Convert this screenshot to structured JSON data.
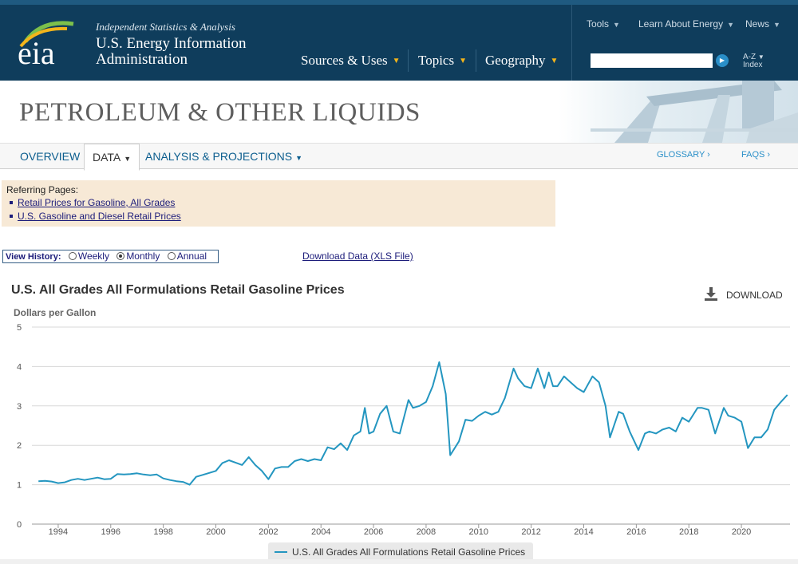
{
  "header": {
    "tagline": "Independent Statistics & Analysis",
    "agency_line1": "U.S. Energy Information",
    "agency_line2": "Administration",
    "logo_text": "eia",
    "nav": [
      {
        "label": "Sources & Uses"
      },
      {
        "label": "Topics"
      },
      {
        "label": "Geography"
      }
    ],
    "top_links": [
      {
        "label": "Tools"
      },
      {
        "label": "Learn About Energy"
      },
      {
        "label": "News"
      }
    ],
    "search_value": "",
    "az_line1": "A-Z",
    "az_line2": "Index"
  },
  "banner": {
    "title": "PETROLEUM & OTHER LIQUIDS"
  },
  "tabs": {
    "overview": "OVERVIEW",
    "data": "DATA",
    "analysis": "ANALYSIS & PROJECTIONS",
    "glossary": "GLOSSARY ›",
    "faqs": "FAQS ›"
  },
  "referring": {
    "heading": "Referring Pages:",
    "links": [
      "Retail Prices for Gasoline, All Grades",
      "U.S. Gasoline and Diesel Retail Prices"
    ]
  },
  "view_history": {
    "label": "View History:",
    "options": [
      "Weekly",
      "Monthly",
      "Annual"
    ],
    "selected": "Monthly"
  },
  "download_data_link": "Download Data (XLS File)",
  "chart_download_label": "DOWNLOAD",
  "colors": {
    "line": "#2496c0",
    "header_bg": "#0f3d5c",
    "accent": "#f3b51b"
  },
  "chart_data": {
    "type": "line",
    "title": "U.S. All Grades All Formulations Retail Gasoline Prices",
    "ylabel": "Dollars per Gallon",
    "xlabel": "",
    "ylim": [
      0,
      5
    ],
    "xlim": [
      1993.0,
      2021.85
    ],
    "yticks": [
      0,
      1,
      2,
      3,
      4,
      5
    ],
    "xticks": [
      "1994",
      "1996",
      "1998",
      "2000",
      "2002",
      "2004",
      "2006",
      "2008",
      "2010",
      "2012",
      "2014",
      "2016",
      "2018",
      "2020"
    ],
    "grid": true,
    "legend": "bottom-center",
    "series": [
      {
        "name": "U.S. All Grades All Formulations Retail Gasoline Prices",
        "points": [
          [
            1993.25,
            1.09
          ],
          [
            1993.5,
            1.1
          ],
          [
            1993.75,
            1.08
          ],
          [
            1994.0,
            1.04
          ],
          [
            1994.25,
            1.06
          ],
          [
            1994.5,
            1.12
          ],
          [
            1994.75,
            1.15
          ],
          [
            1995.0,
            1.12
          ],
          [
            1995.25,
            1.15
          ],
          [
            1995.5,
            1.18
          ],
          [
            1995.75,
            1.14
          ],
          [
            1996.0,
            1.15
          ],
          [
            1996.25,
            1.27
          ],
          [
            1996.5,
            1.26
          ],
          [
            1996.75,
            1.27
          ],
          [
            1997.0,
            1.29
          ],
          [
            1997.25,
            1.26
          ],
          [
            1997.5,
            1.24
          ],
          [
            1997.75,
            1.26
          ],
          [
            1998.0,
            1.16
          ],
          [
            1998.25,
            1.12
          ],
          [
            1998.5,
            1.09
          ],
          [
            1998.75,
            1.07
          ],
          [
            1999.0,
            1.0
          ],
          [
            1999.25,
            1.2
          ],
          [
            1999.5,
            1.25
          ],
          [
            1999.75,
            1.3
          ],
          [
            2000.0,
            1.35
          ],
          [
            2000.25,
            1.55
          ],
          [
            2000.5,
            1.62
          ],
          [
            2000.75,
            1.56
          ],
          [
            2001.0,
            1.5
          ],
          [
            2001.25,
            1.7
          ],
          [
            2001.5,
            1.5
          ],
          [
            2001.75,
            1.35
          ],
          [
            2002.0,
            1.14
          ],
          [
            2002.25,
            1.41
          ],
          [
            2002.5,
            1.45
          ],
          [
            2002.75,
            1.45
          ],
          [
            2003.0,
            1.6
          ],
          [
            2003.25,
            1.65
          ],
          [
            2003.5,
            1.6
          ],
          [
            2003.75,
            1.65
          ],
          [
            2004.0,
            1.62
          ],
          [
            2004.25,
            1.95
          ],
          [
            2004.5,
            1.9
          ],
          [
            2004.75,
            2.05
          ],
          [
            2005.0,
            1.88
          ],
          [
            2005.25,
            2.25
          ],
          [
            2005.5,
            2.35
          ],
          [
            2005.67,
            2.95
          ],
          [
            2005.83,
            2.3
          ],
          [
            2006.0,
            2.35
          ],
          [
            2006.25,
            2.8
          ],
          [
            2006.5,
            3.0
          ],
          [
            2006.75,
            2.35
          ],
          [
            2007.0,
            2.3
          ],
          [
            2007.33,
            3.15
          ],
          [
            2007.5,
            2.95
          ],
          [
            2007.75,
            3.0
          ],
          [
            2008.0,
            3.1
          ],
          [
            2008.25,
            3.5
          ],
          [
            2008.5,
            4.11
          ],
          [
            2008.75,
            3.3
          ],
          [
            2008.92,
            1.75
          ],
          [
            2009.25,
            2.1
          ],
          [
            2009.5,
            2.65
          ],
          [
            2009.75,
            2.62
          ],
          [
            2010.0,
            2.75
          ],
          [
            2010.25,
            2.85
          ],
          [
            2010.5,
            2.78
          ],
          [
            2010.75,
            2.85
          ],
          [
            2011.0,
            3.2
          ],
          [
            2011.33,
            3.95
          ],
          [
            2011.5,
            3.7
          ],
          [
            2011.75,
            3.5
          ],
          [
            2012.0,
            3.45
          ],
          [
            2012.25,
            3.95
          ],
          [
            2012.5,
            3.45
          ],
          [
            2012.67,
            3.85
          ],
          [
            2012.83,
            3.5
          ],
          [
            2013.0,
            3.5
          ],
          [
            2013.25,
            3.75
          ],
          [
            2013.5,
            3.6
          ],
          [
            2013.75,
            3.45
          ],
          [
            2014.0,
            3.35
          ],
          [
            2014.33,
            3.75
          ],
          [
            2014.58,
            3.6
          ],
          [
            2014.83,
            3.0
          ],
          [
            2015.0,
            2.2
          ],
          [
            2015.33,
            2.85
          ],
          [
            2015.5,
            2.8
          ],
          [
            2015.75,
            2.35
          ],
          [
            2016.08,
            1.88
          ],
          [
            2016.33,
            2.3
          ],
          [
            2016.5,
            2.35
          ],
          [
            2016.75,
            2.3
          ],
          [
            2017.0,
            2.4
          ],
          [
            2017.25,
            2.45
          ],
          [
            2017.5,
            2.35
          ],
          [
            2017.75,
            2.7
          ],
          [
            2018.0,
            2.6
          ],
          [
            2018.33,
            2.95
          ],
          [
            2018.5,
            2.95
          ],
          [
            2018.75,
            2.9
          ],
          [
            2019.0,
            2.3
          ],
          [
            2019.33,
            2.95
          ],
          [
            2019.5,
            2.75
          ],
          [
            2019.75,
            2.7
          ],
          [
            2020.0,
            2.6
          ],
          [
            2020.25,
            1.93
          ],
          [
            2020.5,
            2.2
          ],
          [
            2020.75,
            2.2
          ],
          [
            2021.0,
            2.4
          ],
          [
            2021.25,
            2.9
          ],
          [
            2021.5,
            3.1
          ],
          [
            2021.75,
            3.28
          ]
        ]
      }
    ]
  }
}
